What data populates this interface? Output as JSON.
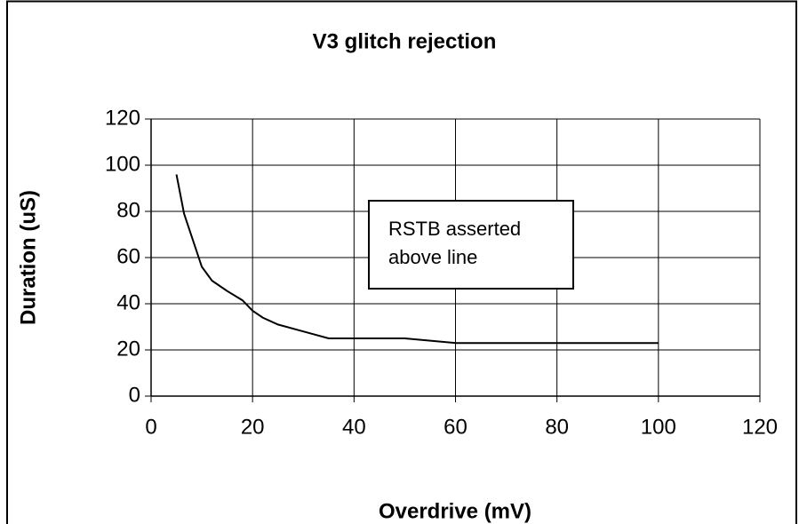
{
  "chart_data": {
    "type": "line",
    "title": "V3 glitch rejection",
    "x_label": "Overdrive (mV)",
    "y_label": "Duration (uS)",
    "annotation": [
      "RSTB asserted",
      "above line"
    ],
    "x": [
      5,
      6.5,
      10,
      12,
      15,
      18,
      20,
      22,
      25,
      30,
      35,
      50,
      60,
      100
    ],
    "series": [
      {
        "name": null,
        "color": "#000000",
        "values": [
          96,
          79,
          56,
          50,
          45.5,
          41.5,
          37,
          34,
          31,
          28,
          25,
          25,
          23,
          23
        ]
      }
    ],
    "xlim": [
      0,
      120
    ],
    "xticks": [
      0,
      20,
      40,
      60,
      80,
      100,
      120
    ],
    "ylim": [
      0,
      120
    ],
    "yticks": [
      0,
      20,
      40,
      60,
      80,
      100,
      120
    ],
    "grid": true
  }
}
